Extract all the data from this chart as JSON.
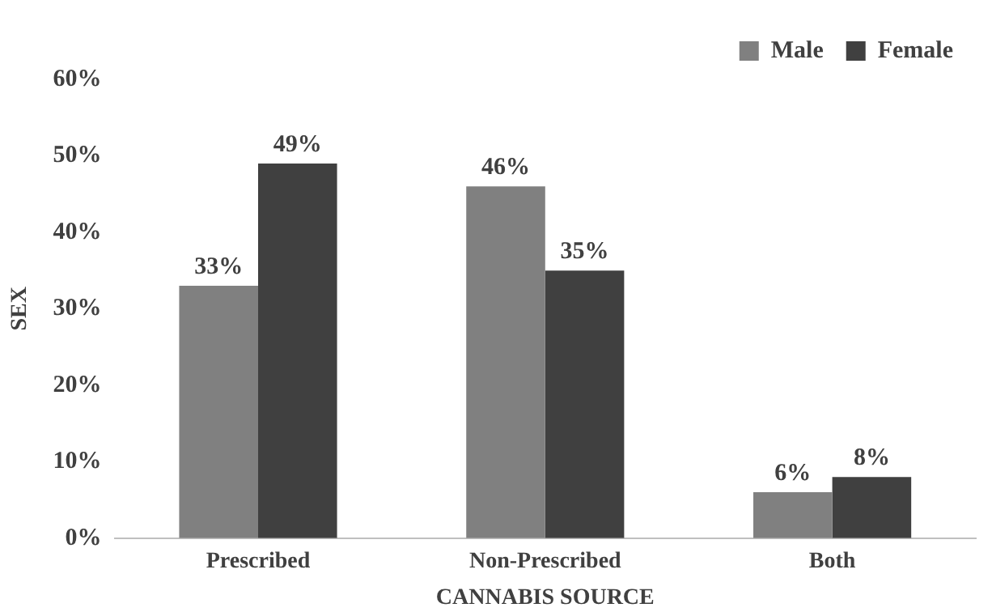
{
  "chart_data": {
    "type": "bar",
    "xlabel": "CANNABIS SOURCE",
    "ylabel": "SEX",
    "categories": [
      "Prescribed",
      "Non-Prescribed",
      "Both"
    ],
    "series": [
      {
        "name": "Male",
        "color": "#808080",
        "values": [
          33,
          46,
          6
        ],
        "value_labels": [
          "33%",
          "46%",
          "6%"
        ]
      },
      {
        "name": "Female",
        "color": "#404040",
        "values": [
          49,
          35,
          8
        ],
        "value_labels": [
          "49%",
          "35%",
          "8%"
        ]
      }
    ],
    "ylim": [
      0,
      60
    ],
    "yticks": [
      {
        "value": 0,
        "label": "0%"
      },
      {
        "value": 10,
        "label": "10%"
      },
      {
        "value": 20,
        "label": "20%"
      },
      {
        "value": 30,
        "label": "30%"
      },
      {
        "value": 40,
        "label": "40%"
      },
      {
        "value": 50,
        "label": "50%"
      },
      {
        "value": 60,
        "label": "60%"
      }
    ],
    "grid": false,
    "legend": "top right"
  }
}
